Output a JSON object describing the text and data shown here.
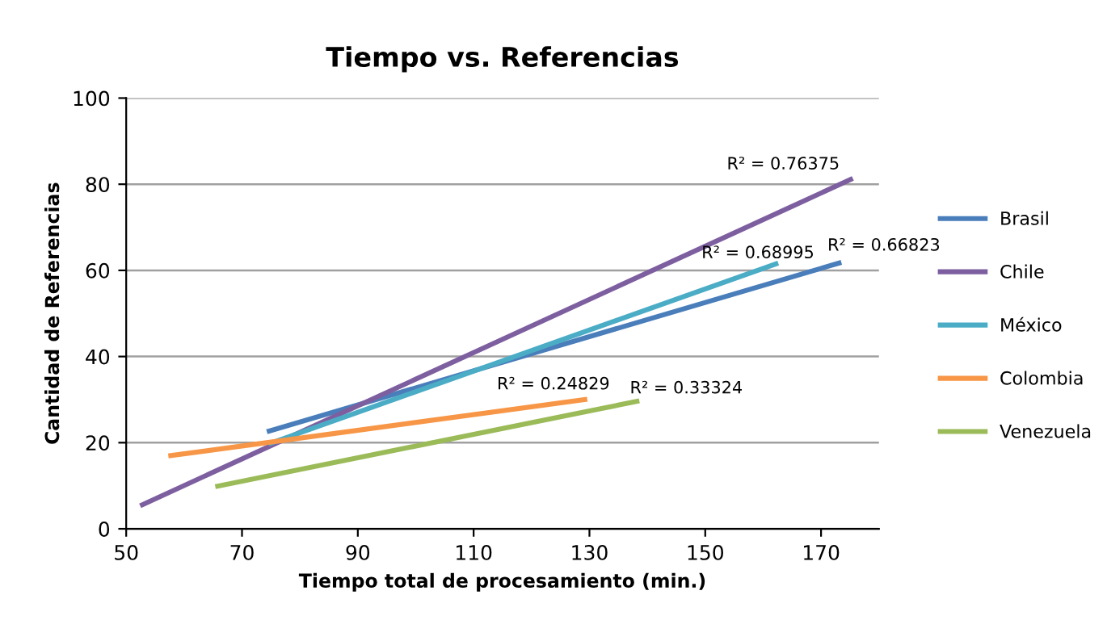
{
  "chart_data": {
    "type": "line",
    "title": "Tiempo vs. Referencias",
    "xlabel": "Tiempo total de procesamiento (min.)",
    "ylabel": "Cantidad de Referencias",
    "series": [
      {
        "name": "Brasil",
        "color": "#4a7ebb",
        "x": [
          74.7,
          173.1
        ],
        "values": [
          22.7,
          61.7
        ]
      },
      {
        "name": "Chile",
        "color": "#7d5fa0",
        "x": [
          52.8,
          175.1
        ],
        "values": [
          5.6,
          81.1
        ]
      },
      {
        "name": "México",
        "color": "#4bacc6",
        "x": [
          75.0,
          162.2
        ],
        "values": [
          19.9,
          61.5
        ]
      },
      {
        "name": "Colombia",
        "color": "#f79646",
        "x": [
          57.7,
          129.2
        ],
        "values": [
          17.0,
          30.0
        ]
      },
      {
        "name": "Venezuela",
        "color": "#9bbb59",
        "x": [
          65.8,
          138.2
        ],
        "values": [
          9.9,
          29.6
        ]
      }
    ],
    "annotations": [
      {
        "text": "R² = 0.76375",
        "x": 175.1,
        "y": 81.1
      },
      {
        "text": "R² = 0.68995",
        "x": 162.2,
        "y": 61.5
      },
      {
        "text": "R² = 0.66823",
        "x": 173.1,
        "y": 61.7
      },
      {
        "text": "R² = 0.24829",
        "x": 129.2,
        "y": 30.0
      },
      {
        "text": "R² = 0.33324",
        "x": 138.2,
        "y": 29.6
      }
    ],
    "xlim": [
      50,
      180
    ],
    "xticks": [
      50,
      70,
      90,
      110,
      130,
      150,
      170
    ],
    "ylim": [
      0,
      100
    ],
    "yticks": [
      0,
      20,
      40,
      60,
      80,
      100
    ],
    "grid": "y",
    "legend": "right",
    "marker": "none",
    "line_style": "solid"
  }
}
